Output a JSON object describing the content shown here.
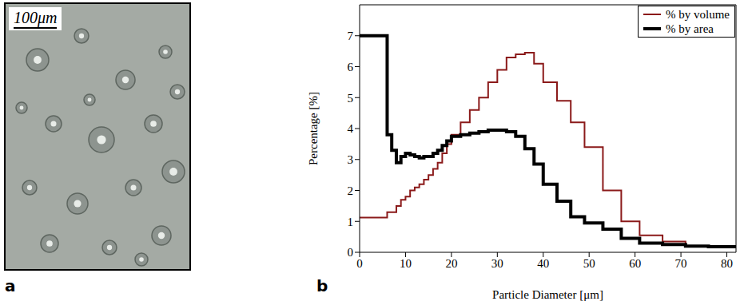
{
  "panels": [
    "a",
    "b"
  ],
  "image": {
    "scale_bar": "100μm"
  },
  "chart_data": {
    "type": "line",
    "line_style": "step",
    "xlabel": "Particle Diameter [μm]",
    "ylabel": "Percentage [%]",
    "bins": [
      0,
      6,
      7,
      8,
      9,
      10,
      11,
      12,
      13,
      14,
      15,
      16,
      17,
      18,
      19,
      20,
      22,
      24,
      26,
      28,
      30,
      32,
      34,
      36,
      38,
      40,
      43,
      46,
      49,
      53,
      57,
      61,
      66,
      71,
      76,
      82
    ],
    "series": [
      {
        "name": "% by volume",
        "color": "#8b1a1a",
        "values": [
          1.12,
          1.3,
          1.3,
          1.5,
          1.7,
          1.8,
          2.0,
          2.1,
          2.2,
          2.35,
          2.5,
          2.7,
          2.9,
          3.2,
          3.5,
          3.8,
          4.2,
          4.6,
          5.0,
          5.5,
          5.9,
          6.3,
          6.4,
          6.45,
          6.1,
          5.5,
          4.9,
          4.2,
          3.4,
          2.0,
          1.0,
          0.55,
          0.35,
          0.2,
          0.18
        ]
      },
      {
        "name": "% by area",
        "color": "#000000",
        "values": [
          7.0,
          3.8,
          3.3,
          2.9,
          3.1,
          3.2,
          3.15,
          3.1,
          3.05,
          3.1,
          3.1,
          3.2,
          3.3,
          3.45,
          3.6,
          3.75,
          3.8,
          3.85,
          3.9,
          3.95,
          3.95,
          3.9,
          3.75,
          3.35,
          2.85,
          2.2,
          1.65,
          1.15,
          0.95,
          0.75,
          0.45,
          0.3,
          0.25,
          0.2,
          0.18
        ]
      }
    ],
    "xlim": [
      0,
      82
    ],
    "xticks": [
      0,
      10,
      20,
      30,
      40,
      50,
      60,
      70,
      80
    ],
    "ylim": [
      0,
      8
    ],
    "yticks": [
      0,
      1,
      2,
      3,
      4,
      5,
      6,
      7
    ],
    "legend": "upper right",
    "grid": false
  }
}
